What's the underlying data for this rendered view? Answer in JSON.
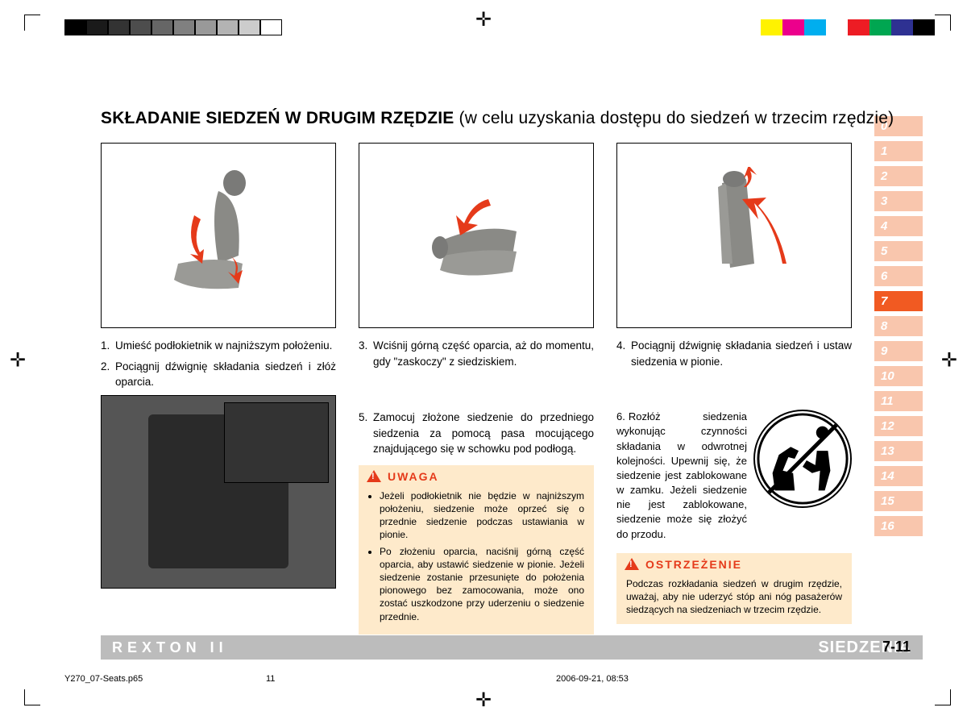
{
  "colorbar_left": [
    "#000000",
    "#1a1a1a",
    "#333333",
    "#4d4d4d",
    "#666666",
    "#808080",
    "#999999",
    "#b3b3b3",
    "#cccccc",
    "#ffffff"
  ],
  "colorbar_right": [
    "#fff200",
    "#ec008c",
    "#00aeef",
    "#ffffff",
    "#ed1c24",
    "#00a651",
    "#2e3192",
    "#000000"
  ],
  "title_main": "SKŁADANIE SIEDZEŃ W DRUGIM RZĘDZIE",
  "title_sub": "(w celu uzyskania dostępu do siedzeń w trzecim rzędzie)",
  "steps": {
    "s1": "Umieść podłokietnik w najniższym położeniu.",
    "s2": "Pociągnij dźwignię składania siedzeń i złóż oparcia.",
    "s3": "Wciśnij górną część oparcia, aż do momentu, gdy \"zaskoczy\" z siedziskiem.",
    "s4": "Pociągnij dźwignię składania siedzeń i ustaw siedzenia w pionie.",
    "s5": "Zamocuj złożone siedzenie do przedniego siedzenia za pomocą pasa mocującego znajdującego się w schowku pod podłogą.",
    "s6": "Rozłóż siedzenia wykonując czynności składania w odwrotnej kolejności. Upewnij się, że siedzenie jest zablokowane w zamku. Jeżeli siedzenie nie jest zablokowane, siedzenie może się złożyć do przodu."
  },
  "uwaga": {
    "title": "UWAGA",
    "items": [
      "Jeżeli podłokietnik nie będzie w najniższym położeniu, siedzenie może oprzeć się o przednie siedzenie podczas ustawiania w pionie.",
      "Po złożeniu oparcia, naciśnij górną część oparcia, aby ustawić siedzenie w pionie. Jeżeli siedzenie zostanie przesunięte do położenia pionowego bez zamocowania, może ono zostać uszkodzone przy uderzeniu o siedzenie przednie."
    ]
  },
  "ostrzezenie": {
    "title": "OSTRZEŻENIE",
    "text": "Podczas rozkładania siedzeń w drugim rzędzie, uważaj, aby nie uderzyć stóp ani nóg pasażerów siedzących na siedzeniach w trzecim rzędzie."
  },
  "tabs": [
    "0",
    "1",
    "2",
    "3",
    "4",
    "5",
    "6",
    "7",
    "8",
    "9",
    "10",
    "11",
    "12",
    "13",
    "14",
    "15",
    "16"
  ],
  "active_tab": "7",
  "brand": "REXTON II",
  "section": "SIEDZENIA",
  "page": "7-11",
  "footer": {
    "file": "Y270_07-Seats.p65",
    "num": "11",
    "date": "2006-09-21, 08:53"
  },
  "colors": {
    "tab_inactive": "#f9c6ad",
    "tab_active": "#f15a22",
    "alert_bg": "#feeacb",
    "alert_accent": "#e53a1a",
    "bottombar": "#bcbcbc"
  }
}
